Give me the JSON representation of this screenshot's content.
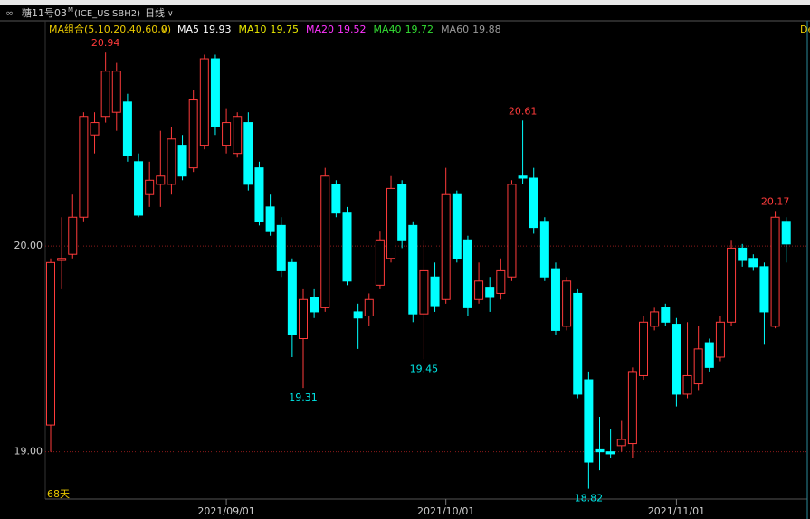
{
  "chart_data": {
    "type": "candlestick",
    "title": "糖11号03",
    "title_sup": "M",
    "symbol": "(ICE_US SBH2)",
    "period": "日线",
    "indicator_group": "MA组合(5,10,20,40,60,0)",
    "indicators": [
      {
        "name": "MA5",
        "value": 19.93,
        "color": "#ffffff"
      },
      {
        "name": "MA10",
        "value": 19.75,
        "color": "#e8e800"
      },
      {
        "name": "MA20",
        "value": 19.52,
        "color": "#ff33ff"
      },
      {
        "name": "MA40",
        "value": 19.72,
        "color": "#33dd33"
      },
      {
        "name": "MA60",
        "value": 19.88,
        "color": "#999999"
      }
    ],
    "days_label": "68天",
    "right_label": "De",
    "categories": [
      null,
      null,
      null,
      null,
      null,
      null,
      null,
      null,
      null,
      null,
      null,
      null,
      null,
      null,
      null,
      null,
      "2021/09/01",
      null,
      null,
      null,
      null,
      null,
      null,
      null,
      null,
      null,
      null,
      null,
      null,
      null,
      null,
      null,
      null,
      null,
      null,
      null,
      "2021/10/01",
      null,
      null,
      null,
      null,
      null,
      null,
      null,
      null,
      null,
      null,
      null,
      null,
      null,
      null,
      null,
      null,
      null,
      null,
      null,
      null,
      "2021/11/01",
      null,
      null,
      null,
      null,
      null,
      null,
      null,
      null,
      null,
      null
    ],
    "open": [
      19.13,
      19.93,
      19.96,
      20.14,
      20.54,
      20.63,
      20.65,
      20.7,
      20.41,
      20.25,
      20.3,
      20.3,
      20.49,
      20.38,
      20.49,
      20.91,
      20.49,
      20.45,
      20.6,
      20.38,
      20.19,
      20.1,
      19.92,
      19.55,
      19.75,
      19.7,
      20.3,
      20.16,
      19.68,
      19.66,
      19.81,
      19.94,
      20.3,
      20.1,
      19.67,
      19.85,
      19.74,
      20.25,
      20.03,
      19.74,
      19.8,
      19.77,
      19.85,
      20.34,
      20.33,
      20.12,
      19.89,
      19.61,
      19.77,
      19.35,
      19.01,
      19.0,
      19.03,
      19.04,
      19.37,
      19.61,
      19.7,
      19.62,
      19.28,
      19.33,
      19.53,
      19.46,
      19.63,
      19.99,
      19.94,
      19.9,
      19.61,
      20.12
    ],
    "high": [
      19.94,
      20.14,
      20.25,
      20.65,
      20.65,
      20.94,
      20.89,
      20.74,
      20.45,
      20.41,
      20.56,
      20.58,
      20.54,
      20.76,
      20.93,
      20.93,
      20.67,
      20.65,
      20.65,
      20.41,
      20.25,
      20.14,
      19.94,
      19.79,
      19.79,
      20.38,
      20.32,
      20.19,
      19.72,
      19.77,
      20.07,
      20.34,
      20.32,
      20.12,
      20.03,
      19.92,
      20.38,
      20.27,
      20.05,
      19.92,
      19.85,
      19.94,
      20.32,
      20.61,
      20.38,
      20.14,
      19.92,
      19.85,
      19.79,
      19.39,
      19.17,
      19.11,
      19.15,
      19.41,
      19.66,
      19.7,
      19.72,
      19.65,
      19.63,
      19.61,
      19.55,
      19.66,
      20.03,
      20.01,
      19.96,
      19.92,
      20.17,
      20.14
    ],
    "low": [
      19.0,
      19.79,
      19.94,
      20.12,
      20.45,
      20.6,
      20.56,
      20.41,
      20.14,
      20.19,
      20.19,
      20.25,
      20.32,
      20.36,
      20.47,
      20.54,
      20.45,
      20.43,
      20.27,
      20.1,
      20.05,
      19.85,
      19.46,
      19.31,
      19.65,
      19.68,
      20.14,
      19.81,
      19.5,
      19.61,
      19.79,
      19.92,
      19.99,
      19.63,
      19.45,
      19.68,
      19.72,
      19.92,
      19.66,
      19.72,
      19.68,
      19.74,
      19.83,
      20.3,
      20.06,
      19.83,
      19.57,
      19.59,
      19.26,
      18.82,
      18.91,
      18.97,
      19.0,
      18.97,
      19.35,
      19.59,
      19.61,
      19.22,
      19.26,
      19.3,
      19.39,
      19.44,
      19.61,
      19.9,
      19.88,
      19.52,
      19.6,
      19.92
    ],
    "close": [
      19.92,
      19.94,
      20.14,
      20.63,
      20.6,
      20.85,
      20.85,
      20.44,
      20.15,
      20.32,
      20.34,
      20.52,
      20.34,
      20.71,
      20.91,
      20.58,
      20.6,
      20.63,
      20.3,
      20.12,
      20.07,
      19.88,
      19.57,
      19.74,
      19.68,
      20.34,
      20.16,
      19.83,
      19.65,
      19.74,
      20.03,
      20.28,
      20.03,
      19.67,
      19.88,
      19.71,
      20.25,
      19.94,
      19.7,
      19.83,
      19.75,
      19.88,
      20.3,
      20.33,
      20.09,
      19.85,
      19.59,
      19.83,
      19.28,
      18.95,
      19.0,
      18.99,
      19.06,
      19.39,
      19.63,
      19.68,
      19.63,
      19.28,
      19.37,
      19.5,
      19.41,
      19.63,
      19.99,
      19.93,
      19.9,
      19.68,
      20.14,
      20.01
    ],
    "up_color": "#ff3b3b",
    "down_color": "#00ffff",
    "annotations": [
      {
        "value": 20.94,
        "color": "#ff3b3b"
      },
      {
        "value": 20.61,
        "color": "#ff3b3b"
      },
      {
        "value": 20.17,
        "color": "#ff3b3b"
      },
      {
        "value": 19.31,
        "color": "#00e5e5"
      },
      {
        "value": 19.45,
        "color": "#00e5e5"
      },
      {
        "value": 18.82,
        "color": "#00e5e5"
      }
    ],
    "ylim": [
      18.77,
      21.02
    ],
    "yticks": [
      {
        "value": 19,
        "label": "19.00"
      },
      {
        "value": 20,
        "label": "20.00"
      }
    ],
    "grid": true
  }
}
